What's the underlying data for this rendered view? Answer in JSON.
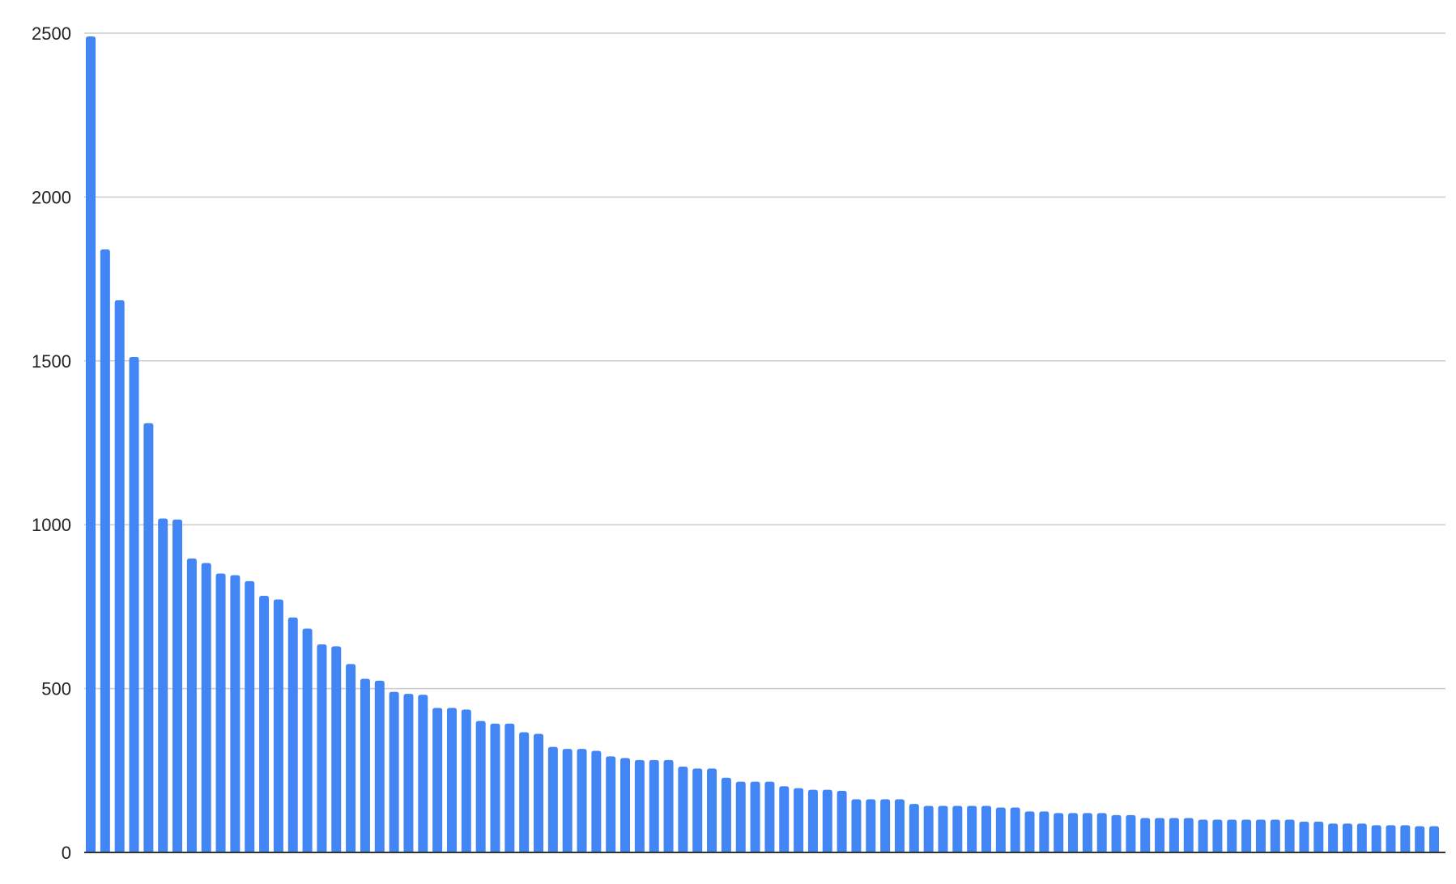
{
  "chart_data": {
    "type": "bar",
    "title": "",
    "xlabel": "",
    "ylabel": "",
    "ylim": [
      0,
      2500
    ],
    "yticks": [
      "0",
      "500",
      "1000",
      "1500",
      "2000",
      "2500"
    ],
    "grid": true,
    "legend": "none",
    "bar_color": "#4285f4",
    "values": [
      2490,
      1840,
      1685,
      1512,
      1310,
      1019,
      1016,
      897,
      883,
      851,
      846,
      828,
      783,
      772,
      717,
      683,
      635,
      629,
      575,
      530,
      524,
      490,
      484,
      481,
      441,
      441,
      436,
      401,
      393,
      393,
      367,
      362,
      322,
      316,
      316,
      310,
      293,
      288,
      282,
      282,
      282,
      262,
      256,
      256,
      228,
      216,
      216,
      216,
      202,
      196,
      191,
      191,
      188,
      162,
      162,
      162,
      162,
      148,
      142,
      142,
      142,
      142,
      142,
      137,
      137,
      125,
      125,
      120,
      120,
      120,
      120,
      114,
      114,
      105,
      105,
      105,
      105,
      100,
      100,
      100,
      100,
      100,
      100,
      100,
      94,
      94,
      88,
      88,
      88,
      83,
      83,
      83,
      80,
      80
    ]
  }
}
